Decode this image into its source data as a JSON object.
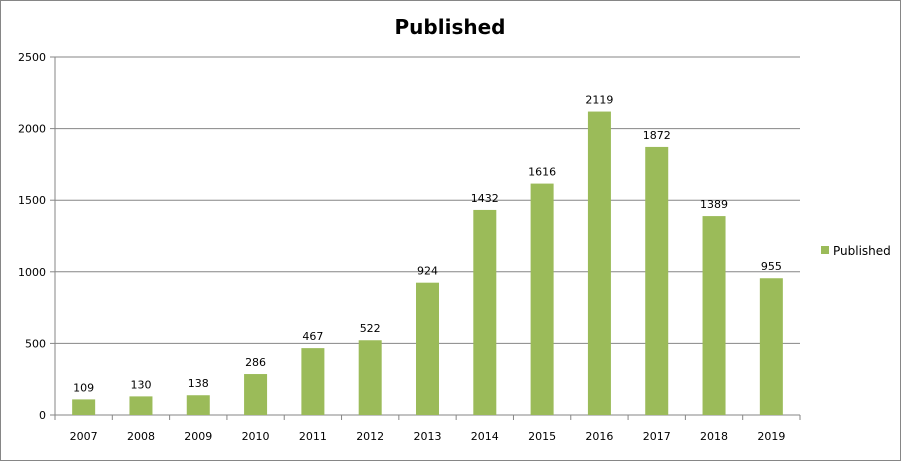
{
  "chart_data": {
    "type": "bar",
    "title": "Published",
    "categories": [
      "2007",
      "2008",
      "2009",
      "2010",
      "2011",
      "2012",
      "2013",
      "2014",
      "2015",
      "2016",
      "2017",
      "2018",
      "2019"
    ],
    "series": [
      {
        "name": "Published",
        "values": [
          109,
          130,
          138,
          286,
          467,
          522,
          924,
          1432,
          1616,
          2119,
          1872,
          1389,
          955
        ],
        "color": "#9BBB59"
      }
    ],
    "ylim": [
      0,
      2500
    ],
    "yticks": [
      "0",
      "500",
      "1000",
      "1500",
      "2000",
      "2500"
    ],
    "grid": true,
    "legend": "right",
    "data_labels": true
  }
}
